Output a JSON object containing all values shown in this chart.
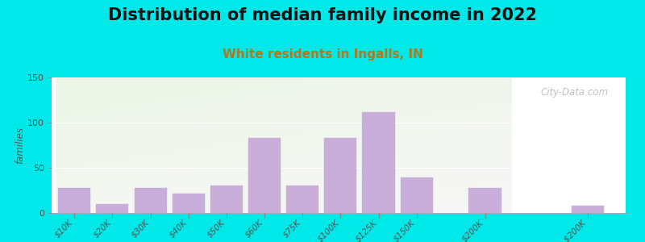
{
  "title": "Distribution of median family income in 2022",
  "subtitle": "White residents in Ingalls, IN",
  "categories": [
    "$10K",
    "$20K",
    "$30K",
    "$40K",
    "$50K",
    "$60K",
    "$75K",
    "$100K",
    "$125K",
    "$150K",
    "$200K",
    "> $200K"
  ],
  "values": [
    28,
    10,
    28,
    21,
    30,
    83,
    30,
    83,
    112,
    39,
    28,
    8
  ],
  "bar_color": "#c8aed8",
  "bar_edge_color": "#c8aed8",
  "ylabel": "families",
  "ylim": [
    0,
    150
  ],
  "yticks": [
    0,
    50,
    100,
    150
  ],
  "background_outer": "#00e8e8",
  "title_fontsize": 15,
  "subtitle_fontsize": 11,
  "subtitle_color": "#b07820",
  "watermark_text": "City-Data.com",
  "watermark_color": "#b0b8b0"
}
